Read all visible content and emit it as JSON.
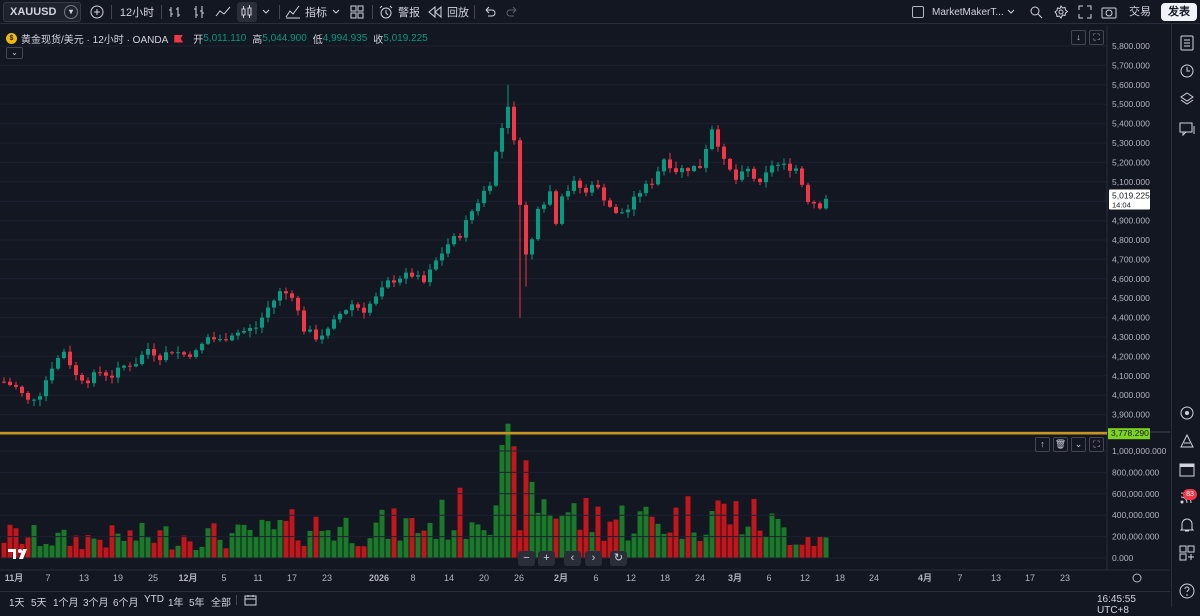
{
  "toolbar": {
    "symbol": "XAUUSD",
    "interval": "12小时",
    "indicators_label": "指标",
    "alert_label": "警报",
    "replay_label": "回放",
    "layout_name": "MarketMakerT...",
    "trade_label": "交易",
    "publish_label": "发表"
  },
  "legend": {
    "title": "黄金现货/美元 · 12小时 · OANDA",
    "open_label": "开",
    "open": "5,011.110",
    "high_label": "高",
    "high": "5,044.900",
    "low_label": "低",
    "low": "4,994.935",
    "close_label": "收",
    "close": "5,019.225"
  },
  "price_axis": {
    "ticks": [
      "5,800.000",
      "5,700.000",
      "5,600.000",
      "5,500.000",
      "5,400.000",
      "5,300.000",
      "5,200.000",
      "5,100.000",
      "5,000.000",
      "4,900.000",
      "4,800.000",
      "4,700.000",
      "4,600.000",
      "4,500.000",
      "4,400.000",
      "4,300.000",
      "4,200.000",
      "4,100.000",
      "4,000.000",
      "3,900.000",
      "3,800.000"
    ],
    "last_price": "5,019.225",
    "countdown": "14:04",
    "line_price": "3,778.290"
  },
  "volume_axis": {
    "ticks": [
      "1,000,000.000",
      "800,000.000",
      "600,000.000",
      "400,000.000",
      "200,000.000",
      "0.000"
    ]
  },
  "time_axis": {
    "labels": [
      "11月",
      "7",
      "13",
      "19",
      "25",
      "12月",
      "5",
      "11",
      "17",
      "23",
      "2026",
      "8",
      "14",
      "20",
      "26",
      "2月",
      "6",
      "12",
      "18",
      "24",
      "3月",
      "6",
      "12",
      "18",
      "24",
      "4月",
      "7",
      "13",
      "17",
      "23"
    ]
  },
  "ranges": [
    "1天",
    "5天",
    "1个月",
    "3个月",
    "6个月",
    "YTD",
    "1年",
    "5年",
    "全部"
  ],
  "clock": "16:45:55 UTC+8",
  "notifications_count": "83",
  "colors": {
    "up": "#089981",
    "down": "#f23645",
    "vol_up": "#1b7a2a",
    "vol_down": "#c3161b",
    "line": "#c8941f",
    "price_box": "#ffffff"
  },
  "chart_data": {
    "type": "candlestick",
    "title": "黄金现货/美元 · 12小时 · OANDA",
    "xlabel": "",
    "ylabel": "",
    "ylim": [
      3800,
      5800
    ],
    "volume_ylim": [
      0,
      1000000
    ],
    "close_path": [
      [
        0,
        4070
      ],
      [
        2,
        4040
      ],
      [
        4,
        3970
      ],
      [
        6,
        4010
      ],
      [
        8,
        4150
      ],
      [
        10,
        4230
      ],
      [
        12,
        4100
      ],
      [
        14,
        4080
      ],
      [
        16,
        4120
      ],
      [
        18,
        4100
      ],
      [
        20,
        4150
      ],
      [
        22,
        4170
      ],
      [
        24,
        4240
      ],
      [
        26,
        4200
      ],
      [
        28,
        4230
      ],
      [
        30,
        4210
      ],
      [
        32,
        4220
      ],
      [
        34,
        4300
      ],
      [
        36,
        4280
      ],
      [
        38,
        4320
      ],
      [
        40,
        4330
      ],
      [
        42,
        4350
      ],
      [
        44,
        4450
      ],
      [
        46,
        4530
      ],
      [
        48,
        4520
      ],
      [
        50,
        4340
      ],
      [
        52,
        4300
      ],
      [
        54,
        4330
      ],
      [
        56,
        4420
      ],
      [
        58,
        4470
      ],
      [
        60,
        4440
      ],
      [
        62,
        4500
      ],
      [
        64,
        4580
      ],
      [
        66,
        4610
      ],
      [
        68,
        4620
      ],
      [
        70,
        4580
      ],
      [
        72,
        4690
      ],
      [
        74,
        4780
      ],
      [
        76,
        4830
      ],
      [
        78,
        4950
      ],
      [
        80,
        5050
      ],
      [
        81,
        5100
      ],
      [
        82,
        5250
      ],
      [
        83,
        5380
      ],
      [
        84,
        5500
      ],
      [
        85,
        5300
      ],
      [
        86,
        5000
      ],
      [
        87,
        4720
      ],
      [
        88,
        4800
      ],
      [
        89,
        4980
      ],
      [
        90,
        5000
      ],
      [
        91,
        5050
      ],
      [
        92,
        4900
      ],
      [
        93,
        5040
      ],
      [
        94,
        5060
      ],
      [
        95,
        5090
      ],
      [
        96,
        5070
      ],
      [
        97,
        5040
      ],
      [
        98,
        5100
      ],
      [
        100,
        5020
      ],
      [
        102,
        4930
      ],
      [
        104,
        4960
      ],
      [
        106,
        5050
      ],
      [
        108,
        5100
      ],
      [
        110,
        5220
      ],
      [
        112,
        5160
      ],
      [
        114,
        5170
      ],
      [
        116,
        5180
      ],
      [
        118,
        5380
      ],
      [
        119,
        5300
      ],
      [
        120,
        5200
      ],
      [
        122,
        5110
      ],
      [
        124,
        5160
      ],
      [
        126,
        5080
      ],
      [
        128,
        5190
      ],
      [
        130,
        5180
      ],
      [
        132,
        5170
      ],
      [
        134,
        5010
      ],
      [
        136,
        4980
      ],
      [
        137,
        5019
      ]
    ],
    "candle_count": 138,
    "volume_path": [
      [
        0,
        250000
      ],
      [
        10,
        200000
      ],
      [
        20,
        230000
      ],
      [
        30,
        250000
      ],
      [
        40,
        240000
      ],
      [
        50,
        350000
      ],
      [
        60,
        330000
      ],
      [
        70,
        350000
      ],
      [
        78,
        520000
      ],
      [
        84,
        900000
      ],
      [
        86,
        700000
      ],
      [
        90,
        620000
      ],
      [
        95,
        460000
      ],
      [
        100,
        430000
      ],
      [
        110,
        400000
      ],
      [
        118,
        520000
      ],
      [
        125,
        420000
      ],
      [
        130,
        300000
      ],
      [
        137,
        200000
      ]
    ]
  }
}
